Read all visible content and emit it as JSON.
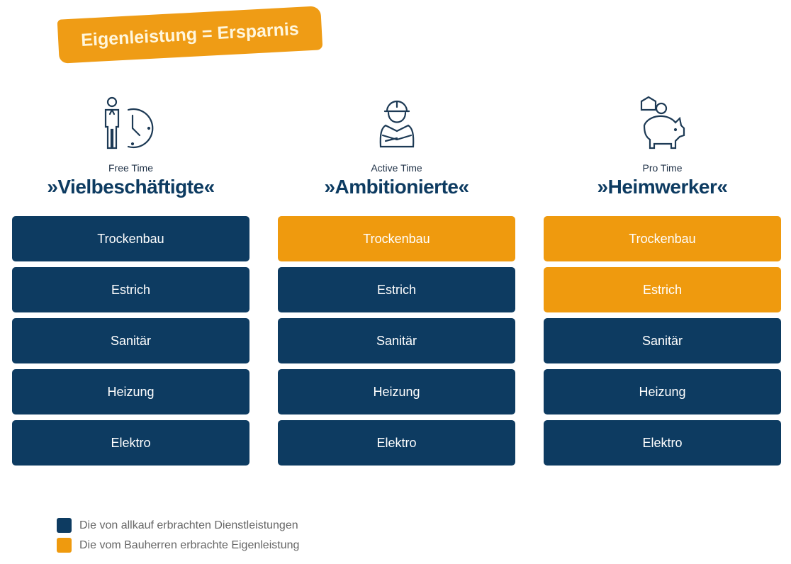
{
  "banner": {
    "text": "Eigenleistung = Ersparnis"
  },
  "colors": {
    "service": "#0d3b61",
    "own": "#ef9a0e"
  },
  "columns": [
    {
      "subtitle": "Free Time",
      "title": "»Vielbeschäftigte«",
      "icon": "person-clock-icon",
      "items": [
        {
          "label": "Trockenbau",
          "type": "service"
        },
        {
          "label": "Estrich",
          "type": "service"
        },
        {
          "label": "Sanitär",
          "type": "service"
        },
        {
          "label": "Heizung",
          "type": "service"
        },
        {
          "label": "Elektro",
          "type": "service"
        }
      ]
    },
    {
      "subtitle": "Active Time",
      "title": "»Ambitionierte«",
      "icon": "construction-worker-icon",
      "items": [
        {
          "label": "Trockenbau",
          "type": "own"
        },
        {
          "label": "Estrich",
          "type": "service"
        },
        {
          "label": "Sanitär",
          "type": "service"
        },
        {
          "label": "Heizung",
          "type": "service"
        },
        {
          "label": "Elektro",
          "type": "service"
        }
      ]
    },
    {
      "subtitle": "Pro Time",
      "title": "»Heimwerker«",
      "icon": "piggy-bank-icon",
      "items": [
        {
          "label": "Trockenbau",
          "type": "own"
        },
        {
          "label": "Estrich",
          "type": "own"
        },
        {
          "label": "Sanitär",
          "type": "service"
        },
        {
          "label": "Heizung",
          "type": "service"
        },
        {
          "label": "Elektro",
          "type": "service"
        }
      ]
    }
  ],
  "legend": [
    {
      "label": "Die von allkauf erbrachten Dienstleistungen",
      "type": "service"
    },
    {
      "label": "Die vom Bauherren erbrachte Eigenleistung",
      "type": "own"
    }
  ]
}
